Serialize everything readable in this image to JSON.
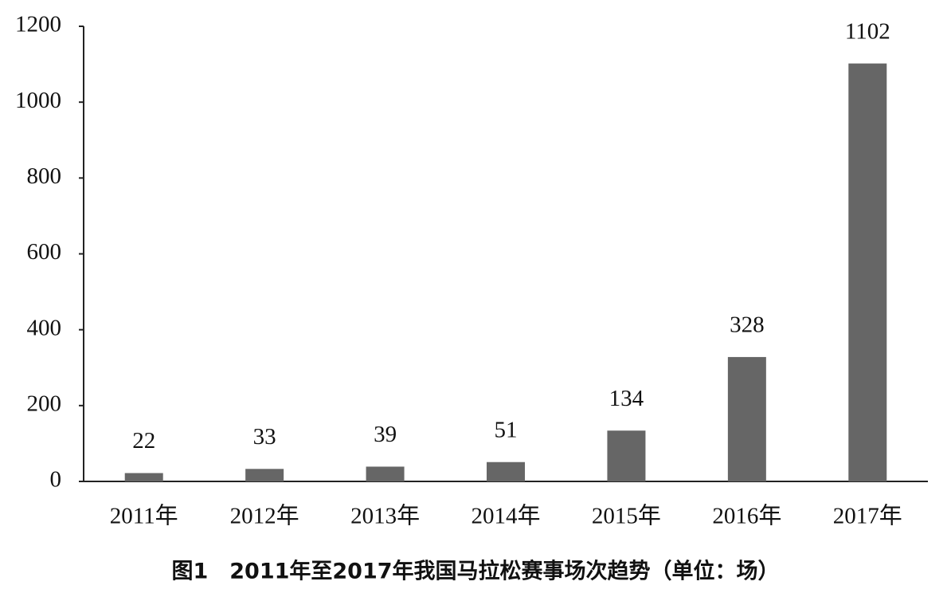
{
  "chart_data": {
    "type": "bar",
    "title": "图1　2011年至2017年我国马拉松赛事场次趋势（单位：场）",
    "categories": [
      "2011年",
      "2012年",
      "2013年",
      "2014年",
      "2015年",
      "2016年",
      "2017年"
    ],
    "values": [
      22,
      33,
      39,
      51,
      134,
      328,
      1102
    ],
    "color": "#666666",
    "ylim": [
      0,
      1200
    ],
    "yticks": [
      0,
      200,
      400,
      600,
      800,
      1000,
      1200
    ],
    "grid": false
  }
}
